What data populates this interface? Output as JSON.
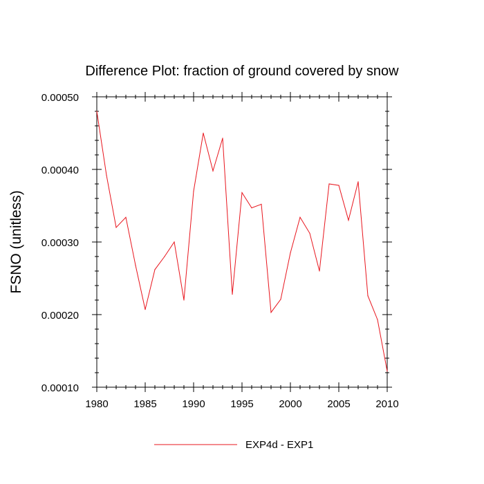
{
  "chart_data": {
    "type": "line",
    "title": "Difference Plot: fraction of ground covered by snow",
    "xlabel": "",
    "ylabel": "FSNO  (unitless)",
    "xlim": [
      1980,
      2010
    ],
    "ylim": [
      0.0001,
      0.0005
    ],
    "x_ticks": [
      1980,
      1985,
      1990,
      1995,
      2000,
      2005,
      2010
    ],
    "y_ticks": [
      0.0001,
      0.0002,
      0.0003,
      0.0004,
      0.0005
    ],
    "x_tick_labels": [
      "1980",
      "1985",
      "1990",
      "1995",
      "2000",
      "2005",
      "2010"
    ],
    "y_tick_labels": [
      "0.00010",
      "0.00020",
      "0.00030",
      "0.00040",
      "0.00050"
    ],
    "grid": false,
    "legend_position": "bottom-center",
    "series": [
      {
        "name": "EXP4d - EXP1",
        "color": "#e8141c",
        "x": [
          1980,
          1981,
          1982,
          1983,
          1984,
          1985,
          1986,
          1987,
          1988,
          1989,
          1990,
          1991,
          1992,
          1993,
          1994,
          1995,
          1996,
          1997,
          1998,
          1999,
          2000,
          2001,
          2002,
          2003,
          2004,
          2005,
          2006,
          2007,
          2008,
          2009,
          2010
        ],
        "y": [
          0.00048,
          0.000392,
          0.00032,
          0.000334,
          0.000268,
          0.000207,
          0.000262,
          0.00028,
          0.0003,
          0.00022,
          0.00037,
          0.00045,
          0.000398,
          0.000443,
          0.000228,
          0.000368,
          0.000347,
          0.000352,
          0.000203,
          0.000221,
          0.000285,
          0.000334,
          0.000312,
          0.00026,
          0.00038,
          0.000378,
          0.00033,
          0.000383,
          0.000226,
          0.000193,
          0.000122
        ]
      }
    ]
  }
}
